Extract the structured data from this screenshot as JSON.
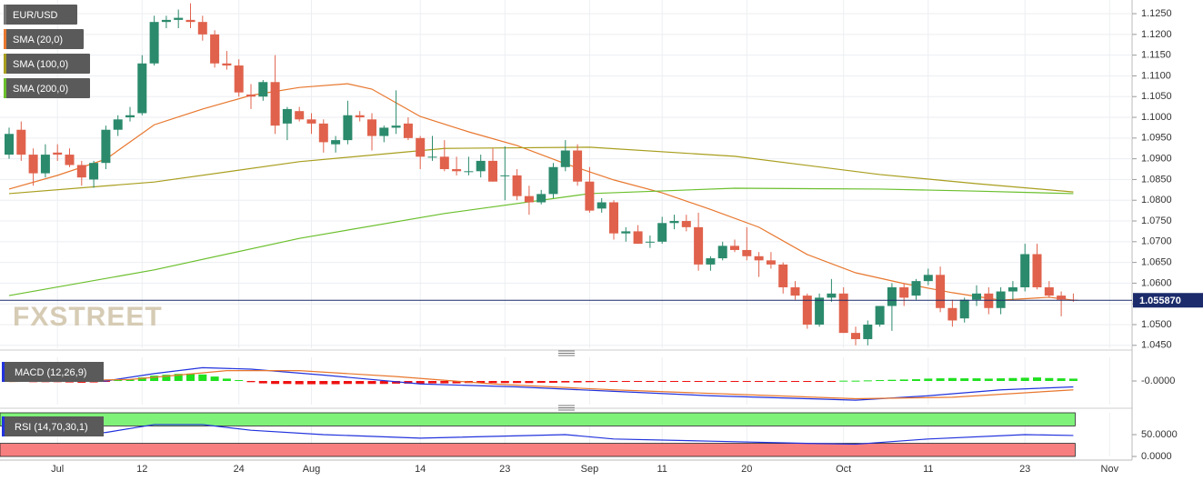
{
  "chart_data": [
    {
      "type": "candlestick",
      "name": "EUR/USD",
      "watermark": "FXSTREET",
      "categories": [
        null,
        null,
        null,
        null,
        "Jul",
        null,
        null,
        null,
        null,
        null,
        null,
        "12",
        null,
        null,
        null,
        null,
        null,
        null,
        null,
        "24",
        null,
        null,
        null,
        null,
        null,
        "Aug",
        null,
        null,
        null,
        null,
        null,
        null,
        null,
        null,
        "14",
        null,
        null,
        null,
        null,
        null,
        null,
        "23",
        null,
        null,
        null,
        null,
        null,
        null,
        "Sep",
        null,
        null,
        null,
        null,
        null,
        "11",
        null,
        null,
        null,
        null,
        null,
        null,
        "20",
        null,
        null,
        null,
        null,
        null,
        null,
        null,
        "Oct",
        null,
        null,
        null,
        null,
        null,
        null,
        "11",
        null,
        null,
        null,
        null,
        null,
        null,
        null,
        "23",
        null,
        null,
        null,
        null,
        null,
        null,
        "Nov"
      ],
      "open": [
        1.091,
        1.097,
        1.091,
        1.0865,
        1.0915,
        1.091,
        1.0885,
        1.085,
        1.089,
        1.097,
        1.1,
        1.101,
        1.113,
        1.123,
        1.1235,
        1.1235,
        1.123,
        1.12,
        1.113,
        1.1125,
        1.1055,
        1.105,
        1.1085,
        1.0985,
        1.1015,
        1.0995,
        1.0985,
        1.0935,
        1.0945,
        1.1005,
        1.0995,
        1.0955,
        1.0975,
        1.0985,
        1.095,
        1.0905,
        1.0905,
        1.0875,
        1.087,
        1.087,
        1.0895,
        1.086,
        1.086,
        1.081,
        1.0795,
        1.0815,
        1.088,
        1.092,
        1.0845,
        1.078,
        1.0795,
        1.072,
        1.0725,
        1.07,
        1.07,
        1.0745,
        1.075,
        1.0735,
        1.0645,
        1.066,
        1.069,
        1.068,
        1.0665,
        1.0655,
        1.0645,
        1.059,
        1.057,
        1.05,
        1.0565,
        1.0575,
        1.048,
        1.0465,
        1.05,
        1.0545,
        1.059,
        1.057,
        1.0605,
        1.062,
        1.054,
        1.0515,
        1.056,
        1.0575,
        1.054,
        1.058,
        1.059,
        1.067,
        1.059,
        1.057,
        1.056,
        null,
        null,
        null
      ],
      "high": [
        1.0975,
        1.099,
        1.0925,
        1.0935,
        1.0935,
        1.0925,
        1.0895,
        1.0895,
        1.098,
        1.1005,
        1.1025,
        1.115,
        1.1245,
        1.1245,
        1.126,
        1.1275,
        1.1245,
        1.121,
        1.116,
        1.114,
        1.108,
        1.109,
        1.115,
        1.1025,
        1.1025,
        1.101,
        1.0995,
        1.0955,
        1.104,
        1.1015,
        1.101,
        1.098,
        1.1065,
        1.1,
        1.0955,
        1.0955,
        1.0945,
        1.0905,
        1.0905,
        1.091,
        1.0925,
        1.093,
        1.0875,
        1.0835,
        1.0825,
        1.089,
        1.0945,
        1.0935,
        1.088,
        1.0805,
        1.08,
        1.0735,
        1.074,
        1.0715,
        1.076,
        1.0765,
        1.0765,
        1.077,
        1.0665,
        1.07,
        1.0705,
        1.0735,
        1.0675,
        1.0675,
        1.065,
        1.0605,
        1.0575,
        1.0575,
        1.061,
        1.059,
        1.0495,
        1.051,
        1.0545,
        1.06,
        1.06,
        1.061,
        1.0635,
        1.064,
        1.056,
        1.0565,
        1.0595,
        1.059,
        1.059,
        1.0605,
        1.0695,
        1.0695,
        1.0605,
        1.058,
        1.0575,
        null,
        null,
        null
      ],
      "low": [
        1.09,
        1.0895,
        1.0835,
        1.0855,
        1.0895,
        1.088,
        1.0835,
        1.083,
        1.0875,
        1.0955,
        1.099,
        1.1005,
        1.1125,
        1.1215,
        1.1215,
        1.1215,
        1.1185,
        1.112,
        1.1115,
        1.105,
        1.102,
        1.104,
        1.096,
        1.0945,
        1.099,
        1.096,
        1.0915,
        1.0915,
        1.0935,
        1.099,
        1.092,
        1.094,
        1.096,
        1.0945,
        1.0875,
        1.0895,
        1.087,
        1.086,
        1.086,
        1.0855,
        1.0845,
        1.08,
        1.08,
        1.0765,
        1.079,
        1.0805,
        1.087,
        1.0835,
        1.077,
        1.077,
        1.0705,
        1.07,
        1.0695,
        1.0685,
        1.0695,
        1.073,
        1.0725,
        1.063,
        1.063,
        1.0655,
        1.0675,
        1.0655,
        1.0615,
        1.0635,
        1.0575,
        1.056,
        1.049,
        1.0495,
        1.0555,
        1.048,
        1.045,
        1.045,
        1.0495,
        1.0485,
        1.0545,
        1.056,
        1.0595,
        1.053,
        1.0495,
        1.0505,
        1.0545,
        1.0525,
        1.0525,
        1.056,
        1.058,
        1.0585,
        1.0565,
        1.052,
        1.0555,
        null,
        null,
        null
      ],
      "close": [
        1.096,
        1.091,
        1.0865,
        1.091,
        1.091,
        1.0885,
        1.0855,
        1.089,
        1.097,
        1.0995,
        1.1005,
        1.113,
        1.123,
        1.1235,
        1.124,
        1.123,
        1.12,
        1.113,
        1.1125,
        1.106,
        1.105,
        1.1085,
        1.098,
        1.102,
        1.0995,
        1.0985,
        1.094,
        1.0945,
        1.1005,
        1.1,
        1.0955,
        1.0975,
        1.098,
        1.095,
        1.0905,
        1.0905,
        1.0875,
        1.087,
        1.087,
        1.0895,
        1.0845,
        1.086,
        1.081,
        1.0795,
        1.0815,
        1.088,
        1.092,
        1.0845,
        1.0775,
        1.0795,
        1.072,
        1.0725,
        1.0695,
        1.07,
        1.0745,
        1.075,
        1.0735,
        1.0645,
        1.066,
        1.069,
        1.068,
        1.0665,
        1.0655,
        1.0645,
        1.059,
        1.057,
        1.05,
        1.0565,
        1.0575,
        1.048,
        1.0465,
        1.05,
        1.0545,
        1.059,
        1.0565,
        1.0605,
        1.062,
        1.054,
        1.051,
        1.056,
        1.0575,
        1.054,
        1.058,
        1.059,
        1.067,
        1.059,
        1.057,
        1.056,
        1.0559,
        null,
        null,
        null
      ],
      "up_color": "#2b8a6c",
      "down_color": "#e0624c",
      "ylim": [
        1.0443,
        1.1283
      ],
      "yticks": [
        {
          "value": 1.045,
          "label": "1.0450"
        },
        {
          "value": 1.05,
          "label": "1.0500"
        },
        {
          "value": 1.055,
          "label": "1.0550"
        },
        {
          "value": 1.06,
          "label": "1.0600"
        },
        {
          "value": 1.065,
          "label": "1.0650"
        },
        {
          "value": 1.07,
          "label": "1.0700"
        },
        {
          "value": 1.075,
          "label": "1.0750"
        },
        {
          "value": 1.08,
          "label": "1.0800"
        },
        {
          "value": 1.085,
          "label": "1.0850"
        },
        {
          "value": 1.09,
          "label": "1.0900"
        },
        {
          "value": 1.095,
          "label": "1.0950"
        },
        {
          "value": 1.1,
          "label": "1.1000"
        },
        {
          "value": 1.105,
          "label": "1.1050"
        },
        {
          "value": 1.11,
          "label": "1.1100"
        },
        {
          "value": 1.115,
          "label": "1.1150"
        },
        {
          "value": 1.12,
          "label": "1.1200"
        },
        {
          "value": 1.125,
          "label": "1.1250"
        }
      ],
      "grid": true,
      "last_price": {
        "value": 1.05587,
        "label": "1.055870",
        "color": "#1b2b6b"
      },
      "series": [
        {
          "name": "SMA (20,0)",
          "color": "#e8772e",
          "x": [
            0,
            4,
            8,
            12,
            16,
            20,
            24,
            28,
            30,
            34,
            38,
            42,
            46,
            50,
            54,
            58,
            62,
            66,
            70,
            74,
            78,
            82,
            86,
            88
          ],
          "values": [
            1.0827,
            1.086,
            1.0899,
            1.0982,
            1.102,
            1.1053,
            1.1072,
            1.1081,
            1.1068,
            1.1002,
            1.0965,
            1.0932,
            1.0888,
            1.0849,
            1.0818,
            1.0778,
            1.0735,
            1.0669,
            1.0625,
            1.0599,
            1.0577,
            1.0559,
            1.0566,
            1.0559
          ]
        },
        {
          "name": "SMA (100,0)",
          "color": "#a89e1e",
          "x": [
            0,
            12,
            24,
            36,
            48,
            60,
            72,
            80,
            88
          ],
          "values": [
            1.0816,
            1.0844,
            1.0893,
            1.0925,
            1.0928,
            1.0906,
            1.0862,
            1.084,
            1.082
          ]
        },
        {
          "name": "SMA (200,0)",
          "color": "#6abf2c",
          "x": [
            0,
            12,
            24,
            36,
            48,
            60,
            72,
            80,
            88
          ],
          "values": [
            1.057,
            1.0632,
            1.0708,
            1.0768,
            1.0816,
            1.0829,
            1.0827,
            1.0822,
            1.0816
          ]
        }
      ]
    },
    {
      "type": "macd",
      "name": "MACD (12,26,9)",
      "histogram": [
        -0.0003,
        -0.0003,
        -0.0004,
        -0.0004,
        -0.0004,
        -0.0005,
        -0.0006,
        -0.0005,
        -0.0002,
        0.0003,
        0.0006,
        0.0012,
        0.0018,
        0.0021,
        0.0024,
        0.0025,
        0.0022,
        0.0015,
        0.0008,
        0.0003,
        -0.0004,
        -0.0008,
        -0.001,
        -0.001,
        -0.0011,
        -0.0011,
        -0.0011,
        -0.0011,
        -0.001,
        -0.001,
        -0.001,
        -0.001,
        -0.0009,
        -0.0009,
        -0.0009,
        -0.0008,
        -0.0008,
        -0.0008,
        -0.0007,
        -0.0007,
        -0.0007,
        -0.0007,
        -0.0007,
        -0.0007,
        -0.0006,
        -0.0006,
        -0.0005,
        -0.0005,
        -0.0004,
        -0.0003,
        -0.0003,
        -0.0002,
        -0.0002,
        -0.0002,
        -0.0002,
        -0.0002,
        -0.0002,
        -0.0002,
        -0.0002,
        -0.0002,
        -0.0002,
        -0.0001,
        -0.0001,
        -0.0001,
        -0.0001,
        -0.0001,
        -0.0001,
        -0.0001,
        -0.0001,
        0.0001,
        0.0001,
        0.0002,
        0.0003,
        0.0004,
        0.0005,
        0.0006,
        0.0008,
        0.0009,
        0.001,
        0.0009,
        0.0009,
        0.0008,
        0.0009,
        0.001,
        0.0011,
        0.0012,
        0.001,
        0.0009,
        0.0008,
        null,
        null,
        null
      ],
      "up_color": "#1fe01f",
      "down_color": "#ee1111",
      "ylim": [
        -0.008,
        0.008
      ],
      "yticks": [
        {
          "value": 0,
          "label": "-0.0000"
        }
      ],
      "series": [
        {
          "color": "#2233dd",
          "x": [
            0,
            8,
            12,
            16,
            20,
            26,
            34,
            42,
            50,
            58,
            66,
            70,
            76,
            82,
            88
          ],
          "values": [
            0.0,
            0.0,
            0.0025,
            0.0045,
            0.004,
            0.002,
            -0.001,
            -0.002,
            -0.0035,
            -0.005,
            -0.006,
            -0.0065,
            -0.005,
            -0.003,
            -0.002
          ]
        },
        {
          "color": "#e8772e",
          "x": [
            0,
            10,
            18,
            24,
            32,
            40,
            50,
            60,
            70,
            78,
            88
          ],
          "values": [
            -0.0002,
            0.0005,
            0.0035,
            0.0035,
            0.0015,
            -0.001,
            -0.003,
            -0.0045,
            -0.006,
            -0.0055,
            -0.003
          ]
        }
      ]
    },
    {
      "type": "rsi",
      "name": "RSI (14,70,30,1)",
      "ylim": [
        0,
        100
      ],
      "yticks": [
        {
          "value": 50,
          "label": "50.0000"
        },
        {
          "value": 0,
          "label": "0.0000"
        }
      ],
      "overbought": 70,
      "oversold": 30,
      "overbought_color": "#7ff27a",
      "oversold_color": "#f77f7f",
      "series": [
        {
          "color": "#2233dd",
          "x": [
            0,
            4,
            8,
            12,
            16,
            20,
            26,
            34,
            46,
            50,
            58,
            66,
            70,
            76,
            84,
            88
          ],
          "values": [
            55,
            50,
            55,
            73,
            73,
            60,
            50,
            42,
            50,
            40,
            35,
            30,
            28,
            40,
            50,
            48
          ]
        }
      ]
    }
  ]
}
